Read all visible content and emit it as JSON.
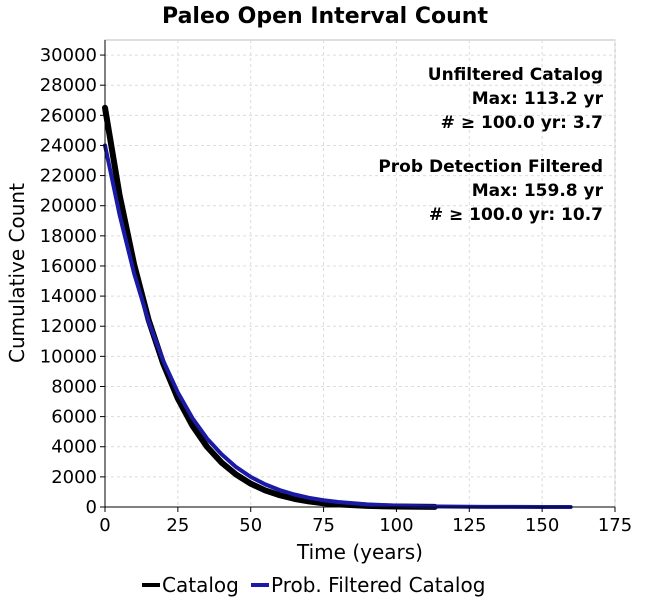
{
  "chart_data": {
    "type": "line",
    "title": "Paleo Open Interval Count",
    "xlabel": "Time (years)",
    "ylabel": "Cumulative Count",
    "xlim": [
      0,
      175
    ],
    "ylim": [
      0,
      31000
    ],
    "x_ticks": [
      0,
      25,
      50,
      75,
      100,
      125,
      150,
      175
    ],
    "y_ticks": [
      0,
      2000,
      4000,
      6000,
      8000,
      10000,
      12000,
      14000,
      16000,
      18000,
      20000,
      22000,
      24000,
      26000,
      28000,
      30000
    ],
    "grid": true,
    "legend_position": "bottom",
    "series": [
      {
        "name": "Catalog",
        "color": "#000000",
        "x": [
          0,
          5,
          10,
          15,
          20,
          25,
          30,
          35,
          40,
          45,
          50,
          55,
          60,
          65,
          70,
          75,
          80,
          90,
          100,
          113.2
        ],
        "y": [
          26500,
          20700,
          16100,
          12400,
          9500,
          7200,
          5400,
          4000,
          2950,
          2150,
          1550,
          1100,
          780,
          540,
          370,
          250,
          170,
          75,
          30,
          5
        ]
      },
      {
        "name": "Prob. Filtered Catalog",
        "color": "#1a1aa6",
        "x": [
          0,
          5,
          10,
          15,
          20,
          25,
          30,
          35,
          40,
          45,
          50,
          55,
          60,
          65,
          70,
          75,
          80,
          90,
          100,
          110,
          120,
          130,
          140,
          150,
          159.8
        ],
        "y": [
          24000,
          19400,
          15500,
          12300,
          9700,
          7600,
          5900,
          4550,
          3500,
          2650,
          2000,
          1500,
          1120,
          830,
          610,
          450,
          330,
          175,
          90,
          45,
          22,
          11,
          6,
          3,
          1
        ]
      }
    ],
    "annotations": [
      {
        "heading": "Unfiltered Catalog",
        "lines": [
          "Max: 113.2 yr",
          "# ≥ 100.0 yr: 3.7"
        ]
      },
      {
        "heading": "Prob Detection Filtered",
        "lines": [
          "Max: 159.8 yr",
          "# ≥ 100.0 yr: 10.7"
        ]
      }
    ]
  }
}
